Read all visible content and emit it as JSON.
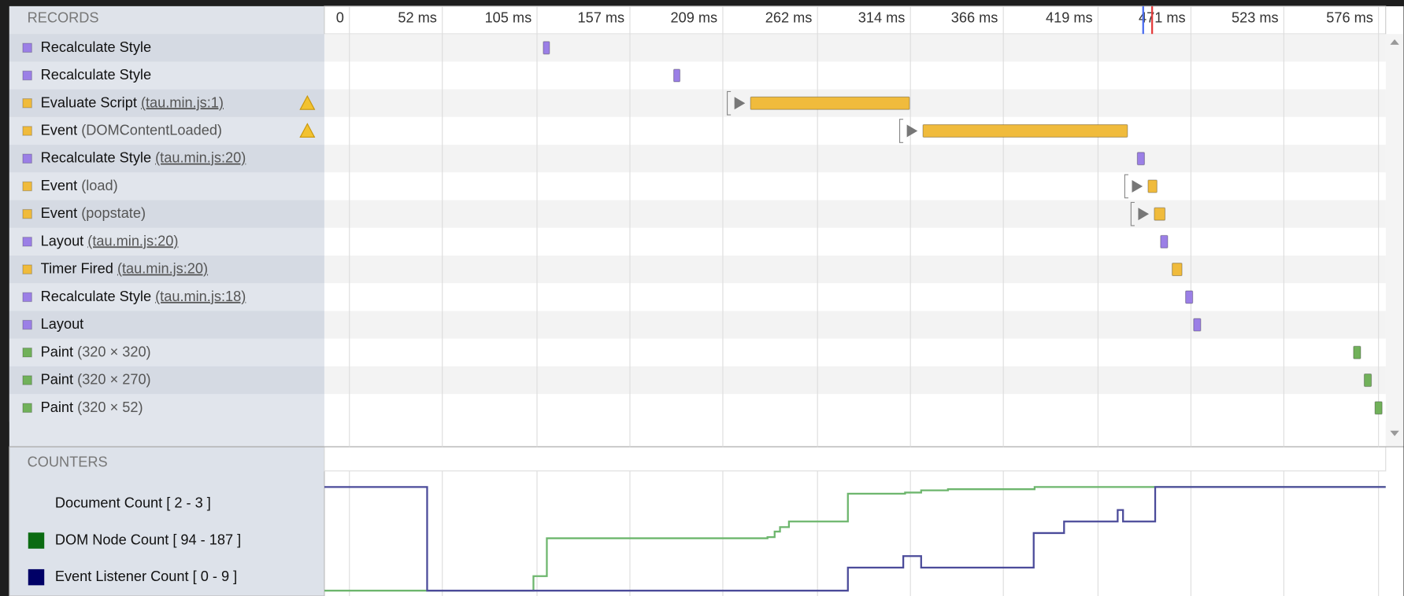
{
  "records_header": "RECORDS",
  "counters_header": "COUNTERS",
  "timeline": {
    "ticks": [
      {
        "value": 0,
        "label": "0"
      },
      {
        "value": 52,
        "label": "52 ms"
      },
      {
        "value": 105,
        "label": "105 ms"
      },
      {
        "value": 157,
        "label": "157 ms"
      },
      {
        "value": 209,
        "label": "209 ms"
      },
      {
        "value": 262,
        "label": "262 ms"
      },
      {
        "value": 314,
        "label": "314 ms"
      },
      {
        "value": 366,
        "label": "366 ms"
      },
      {
        "value": 419,
        "label": "419 ms"
      },
      {
        "value": 471,
        "label": "471 ms"
      },
      {
        "value": 523,
        "label": "523 ms"
      },
      {
        "value": 576,
        "label": "576 ms"
      }
    ]
  },
  "records": [
    {
      "name": "Recalculate Style",
      "color": "#9b7fe6",
      "start": 108.5,
      "duration": 3.5
    },
    {
      "name": "Recalculate Style",
      "color": "#9b7fe6",
      "start": 181.5,
      "duration": 3.5
    },
    {
      "name": "Evaluate Script",
      "detail": "(tau.min.js:1)",
      "link": true,
      "warning": true,
      "expandable": true,
      "color": "#f0bb3c",
      "start": 224.5,
      "duration": 89
    },
    {
      "name": "Event",
      "detail": "(DOMContentLoaded)",
      "warning": true,
      "expandable": true,
      "color": "#f0bb3c",
      "start": 321,
      "duration": 114.5
    },
    {
      "name": "Recalculate Style",
      "detail": "(tau.min.js:20)",
      "link": true,
      "color": "#9b7fe6",
      "start": 441,
      "duration": 4
    },
    {
      "name": "Event",
      "detail": "(load)",
      "expandable": true,
      "color": "#f0bb3c",
      "start": 447,
      "duration": 5
    },
    {
      "name": "Event",
      "detail": "(popstate)",
      "expandable": true,
      "color": "#f0bb3c",
      "start": 450.5,
      "duration": 6
    },
    {
      "name": "Layout",
      "detail": "(tau.min.js:20)",
      "link": true,
      "color": "#9b7fe6",
      "start": 454,
      "duration": 4
    },
    {
      "name": "Timer Fired",
      "detail": "(tau.min.js:20)",
      "link": true,
      "color": "#f0bb3c",
      "start": 460.5,
      "duration": 5.5
    },
    {
      "name": "Recalculate Style",
      "detail": "(tau.min.js:18)",
      "link": true,
      "color": "#9b7fe6",
      "start": 468,
      "duration": 4
    },
    {
      "name": "Layout",
      "color": "#9b7fe6",
      "start": 472.5,
      "duration": 4
    },
    {
      "name": "Paint",
      "detail": "(320 × 320)",
      "color": "#71b15a",
      "start": 562,
      "duration": 4
    },
    {
      "name": "Paint",
      "detail": "(320 × 270)",
      "color": "#71b15a",
      "start": 568,
      "duration": 4
    },
    {
      "name": "Paint",
      "detail": "(320 × 52)",
      "color": "#71b15a",
      "start": 574,
      "duration": 4
    }
  ],
  "counters": [
    {
      "label": "Document Count [ 2 - 3 ]",
      "range": [
        2,
        3
      ]
    },
    {
      "label": "DOM Node Count [ 94 - 187 ]",
      "range": [
        94,
        187
      ],
      "color": "#0b6b12",
      "line_color": "#6db66d",
      "x": [
        -14,
        103,
        105,
        110.5,
        234,
        238,
        241,
        246,
        279,
        311,
        320,
        335,
        383.5,
        580
      ],
      "values": [
        94,
        107,
        107,
        141,
        142,
        147,
        151,
        156,
        181,
        182,
        184,
        185,
        187,
        187
      ]
    },
    {
      "label": "Event Listener Count [ 0 - 9 ]",
      "range": [
        0,
        9
      ],
      "color": "#000066",
      "line_color": "#4b4b9a",
      "x": [
        -14,
        43.5,
        279,
        310,
        320,
        383,
        400,
        430,
        433,
        451,
        580
      ],
      "values": [
        9,
        0,
        2,
        3,
        2,
        5,
        6,
        7,
        6,
        9,
        9
      ]
    }
  ]
}
